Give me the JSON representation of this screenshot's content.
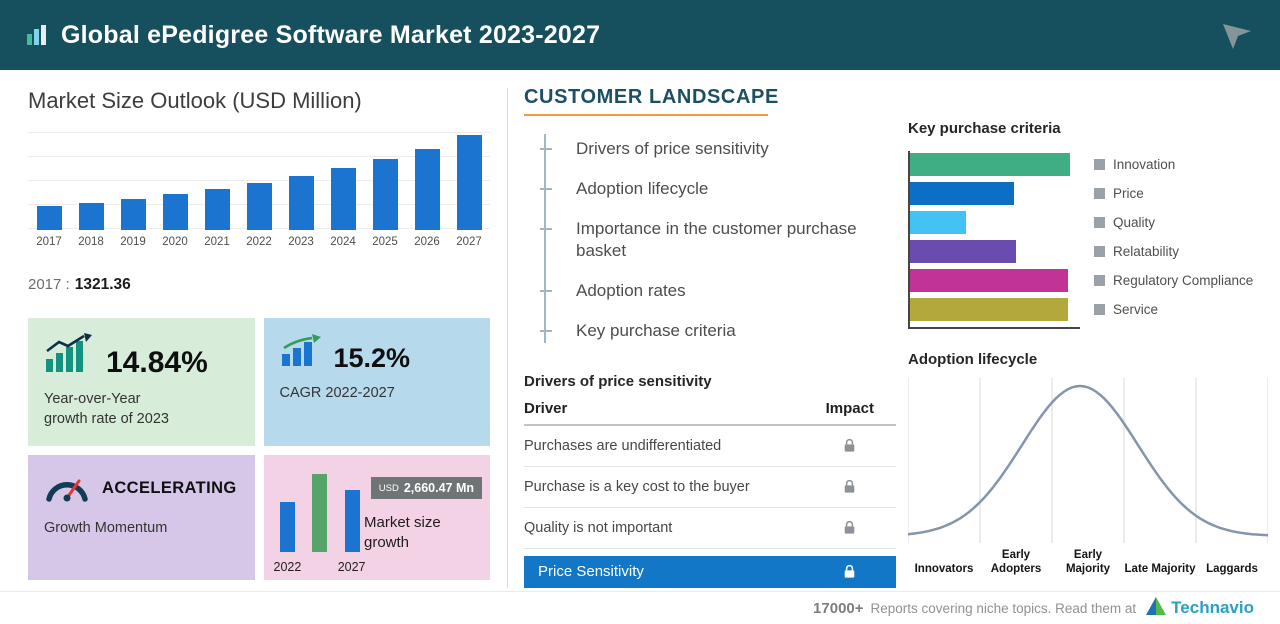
{
  "header": {
    "title": "Global ePedigree Software Market 2023-2027"
  },
  "market_outlook": {
    "title": "Market Size Outlook (USD Million)",
    "base_year_label": "2017 :",
    "base_year_value": "1321.36"
  },
  "stat_cards": {
    "yoy": {
      "value": "14.84%",
      "caption_line1": "Year-over-Year",
      "caption_line2": "growth rate of 2023"
    },
    "cagr": {
      "value": "15.2%",
      "caption": "CAGR 2022-2027"
    },
    "momentum": {
      "value": "ACCELERATING",
      "caption": "Growth Momentum"
    },
    "size_growth": {
      "badge_prefix": "USD",
      "badge_value": "2,660.47 Mn",
      "caption": "Market size growth"
    }
  },
  "customer_landscape": {
    "title": "CUSTOMER LANDSCAPE",
    "items": [
      "Drivers of price sensitivity",
      "Adoption lifecycle",
      "Importance in the customer purchase basket",
      "Adoption rates",
      "Key purchase criteria"
    ]
  },
  "price_sensitivity": {
    "title": "Drivers of price sensitivity",
    "columns": {
      "driver": "Driver",
      "impact": "Impact"
    },
    "rows": [
      "Purchases are undifferentiated",
      "Purchase is a key cost to the buyer",
      "Quality is not important"
    ],
    "highlight_row": "Price Sensitivity"
  },
  "footer": {
    "count": "17000+",
    "text": "Reports covering niche topics. Read them at",
    "brand": "Technavio"
  },
  "colors": {
    "header_bg": "#16505e",
    "bar_blue": "#1b74cf",
    "highlight_blue": "#1377c8",
    "accent_orange": "#ef9a3d",
    "brand_teal": "#2b9fc4"
  },
  "chart_data": [
    {
      "name": "market_size_outlook",
      "type": "bar",
      "title": "Market Size Outlook (USD Million)",
      "categories": [
        "2017",
        "2018",
        "2019",
        "2020",
        "2021",
        "2022",
        "2023",
        "2024",
        "2025",
        "2026",
        "2027"
      ],
      "values": [
        1321.36,
        1511,
        1727,
        1975,
        2258,
        2580,
        2963,
        3403,
        3910,
        4492,
        5240
      ],
      "ylabel": "USD Million",
      "bar_color": "#1b74cf",
      "grid": true,
      "annotation": "2017 : 1321.36"
    },
    {
      "name": "key_purchase_criteria",
      "type": "bar",
      "orientation": "horizontal",
      "title": "Key purchase criteria",
      "categories": [
        "Innovation",
        "Price",
        "Quality",
        "Relatability",
        "Regulatory Compliance",
        "Service"
      ],
      "values": [
        100,
        65,
        35,
        66,
        99,
        99
      ],
      "colors": [
        "#3fae85",
        "#0c6fc4",
        "#44c2f4",
        "#6a4cae",
        "#c23398",
        "#b3a83c"
      ],
      "legend_position": "right"
    },
    {
      "name": "adoption_lifecycle",
      "type": "area",
      "curve": "bell",
      "title": "Adoption lifecycle",
      "categories": [
        "Innovators",
        "Early Adopters",
        "Early Majority",
        "Late Majority",
        "Laggards"
      ]
    },
    {
      "name": "market_size_growth",
      "type": "bar",
      "title": "Market size growth",
      "categories": [
        "2022",
        "2027"
      ],
      "values": [
        2580,
        5240
      ],
      "annotation": "USD 2,660.47 Mn"
    }
  ]
}
